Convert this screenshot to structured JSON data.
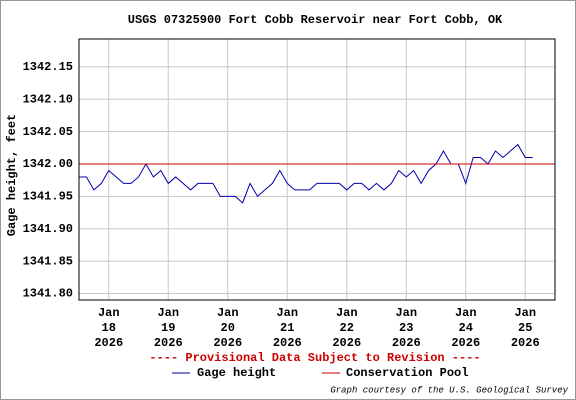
{
  "chart_data": {
    "type": "line",
    "title": "USGS 07325900 Fort Cobb Reservoir near Fort Cobb, OK",
    "ylabel": "Gage height, feet",
    "note": "---- Provisional Data Subject to Revision ----",
    "credit": "Graph courtesy of the U.S. Geological Survey",
    "x": [
      "2026-01-17T12:00",
      "2026-01-17T15:00",
      "2026-01-17T18:00",
      "2026-01-17T21:00",
      "2026-01-18T00:00",
      "2026-01-18T03:00",
      "2026-01-18T06:00",
      "2026-01-18T09:00",
      "2026-01-18T12:00",
      "2026-01-18T15:00",
      "2026-01-18T18:00",
      "2026-01-18T21:00",
      "2026-01-19T00:00",
      "2026-01-19T03:00",
      "2026-01-19T06:00",
      "2026-01-19T09:00",
      "2026-01-19T12:00",
      "2026-01-19T15:00",
      "2026-01-19T18:00",
      "2026-01-19T21:00",
      "2026-01-20T00:00",
      "2026-01-20T03:00",
      "2026-01-20T06:00",
      "2026-01-20T09:00",
      "2026-01-20T12:00",
      "2026-01-20T15:00",
      "2026-01-20T18:00",
      "2026-01-20T21:00",
      "2026-01-21T00:00",
      "2026-01-21T03:00",
      "2026-01-21T06:00",
      "2026-01-21T09:00",
      "2026-01-21T12:00",
      "2026-01-21T15:00",
      "2026-01-21T18:00",
      "2026-01-21T21:00",
      "2026-01-22T00:00",
      "2026-01-22T03:00",
      "2026-01-22T06:00",
      "2026-01-22T09:00",
      "2026-01-22T12:00",
      "2026-01-22T15:00",
      "2026-01-22T18:00",
      "2026-01-22T21:00",
      "2026-01-23T00:00",
      "2026-01-23T03:00",
      "2026-01-23T06:00",
      "2026-01-23T09:00",
      "2026-01-23T12:00",
      "2026-01-23T15:00",
      "2026-01-23T18:00",
      "2026-01-23T21:00",
      "2026-01-24T00:00",
      "2026-01-24T03:00",
      "2026-01-24T06:00",
      "2026-01-24T09:00",
      "2026-01-24T12:00",
      "2026-01-24T15:00",
      "2026-01-24T18:00",
      "2026-01-24T21:00",
      "2026-01-25T00:00",
      "2026-01-25T03:00"
    ],
    "series": [
      {
        "name": "Gage height",
        "color": "#0000aa",
        "values": [
          1341.98,
          1341.98,
          1341.96,
          1341.97,
          1341.99,
          1341.98,
          1341.97,
          1341.97,
          1341.98,
          1342.0,
          1341.98,
          1341.99,
          1341.97,
          1341.98,
          1341.97,
          1341.96,
          1341.97,
          1341.97,
          1341.97,
          1341.95,
          1341.95,
          1341.95,
          1341.94,
          1341.97,
          1341.95,
          1341.96,
          1341.97,
          1341.99,
          1341.97,
          1341.96,
          1341.96,
          1341.96,
          1341.97,
          1341.97,
          1341.97,
          1341.97,
          1341.96,
          1341.97,
          1341.97,
          1341.96,
          1341.97,
          1341.96,
          1341.97,
          1341.99,
          1341.98,
          1341.99,
          1341.97,
          1341.99,
          1342.0,
          1342.02,
          1342.0,
          1342.0,
          1341.97,
          1342.01,
          1342.01,
          1342.0,
          1342.02,
          1342.01,
          1342.02,
          1342.03,
          1342.01,
          1342.01
        ]
      }
    ],
    "reference_lines": [
      {
        "name": "Conservation Pool",
        "color": "#cc0000",
        "value": 1342.0
      }
    ],
    "xlim": [
      "2026-01-17T12:00",
      "2026-01-25T12:00"
    ],
    "xticks": [
      {
        "value": "2026-01-18T00:00",
        "label": "Jan\n18\n2026"
      },
      {
        "value": "2026-01-19T00:00",
        "label": "Jan\n19\n2026"
      },
      {
        "value": "2026-01-20T00:00",
        "label": "Jan\n20\n2026"
      },
      {
        "value": "2026-01-21T00:00",
        "label": "Jan\n21\n2026"
      },
      {
        "value": "2026-01-22T00:00",
        "label": "Jan\n22\n2026"
      },
      {
        "value": "2026-01-23T00:00",
        "label": "Jan\n23\n2026"
      },
      {
        "value": "2026-01-24T00:00",
        "label": "Jan\n24\n2026"
      },
      {
        "value": "2026-01-25T00:00",
        "label": "Jan\n25\n2026"
      }
    ],
    "ylim": [
      1341.79,
      1342.193
    ],
    "yticks": [
      {
        "value": 1341.8,
        "label": "1341.80"
      },
      1341.85,
      {
        "value": 1341.9,
        "label": "1341.90"
      },
      1341.95,
      {
        "value": 1342.0,
        "label": "1342.00"
      },
      1342.05,
      {
        "value": 1342.1,
        "label": "1342.10"
      },
      1342.15
    ],
    "grid": true
  }
}
